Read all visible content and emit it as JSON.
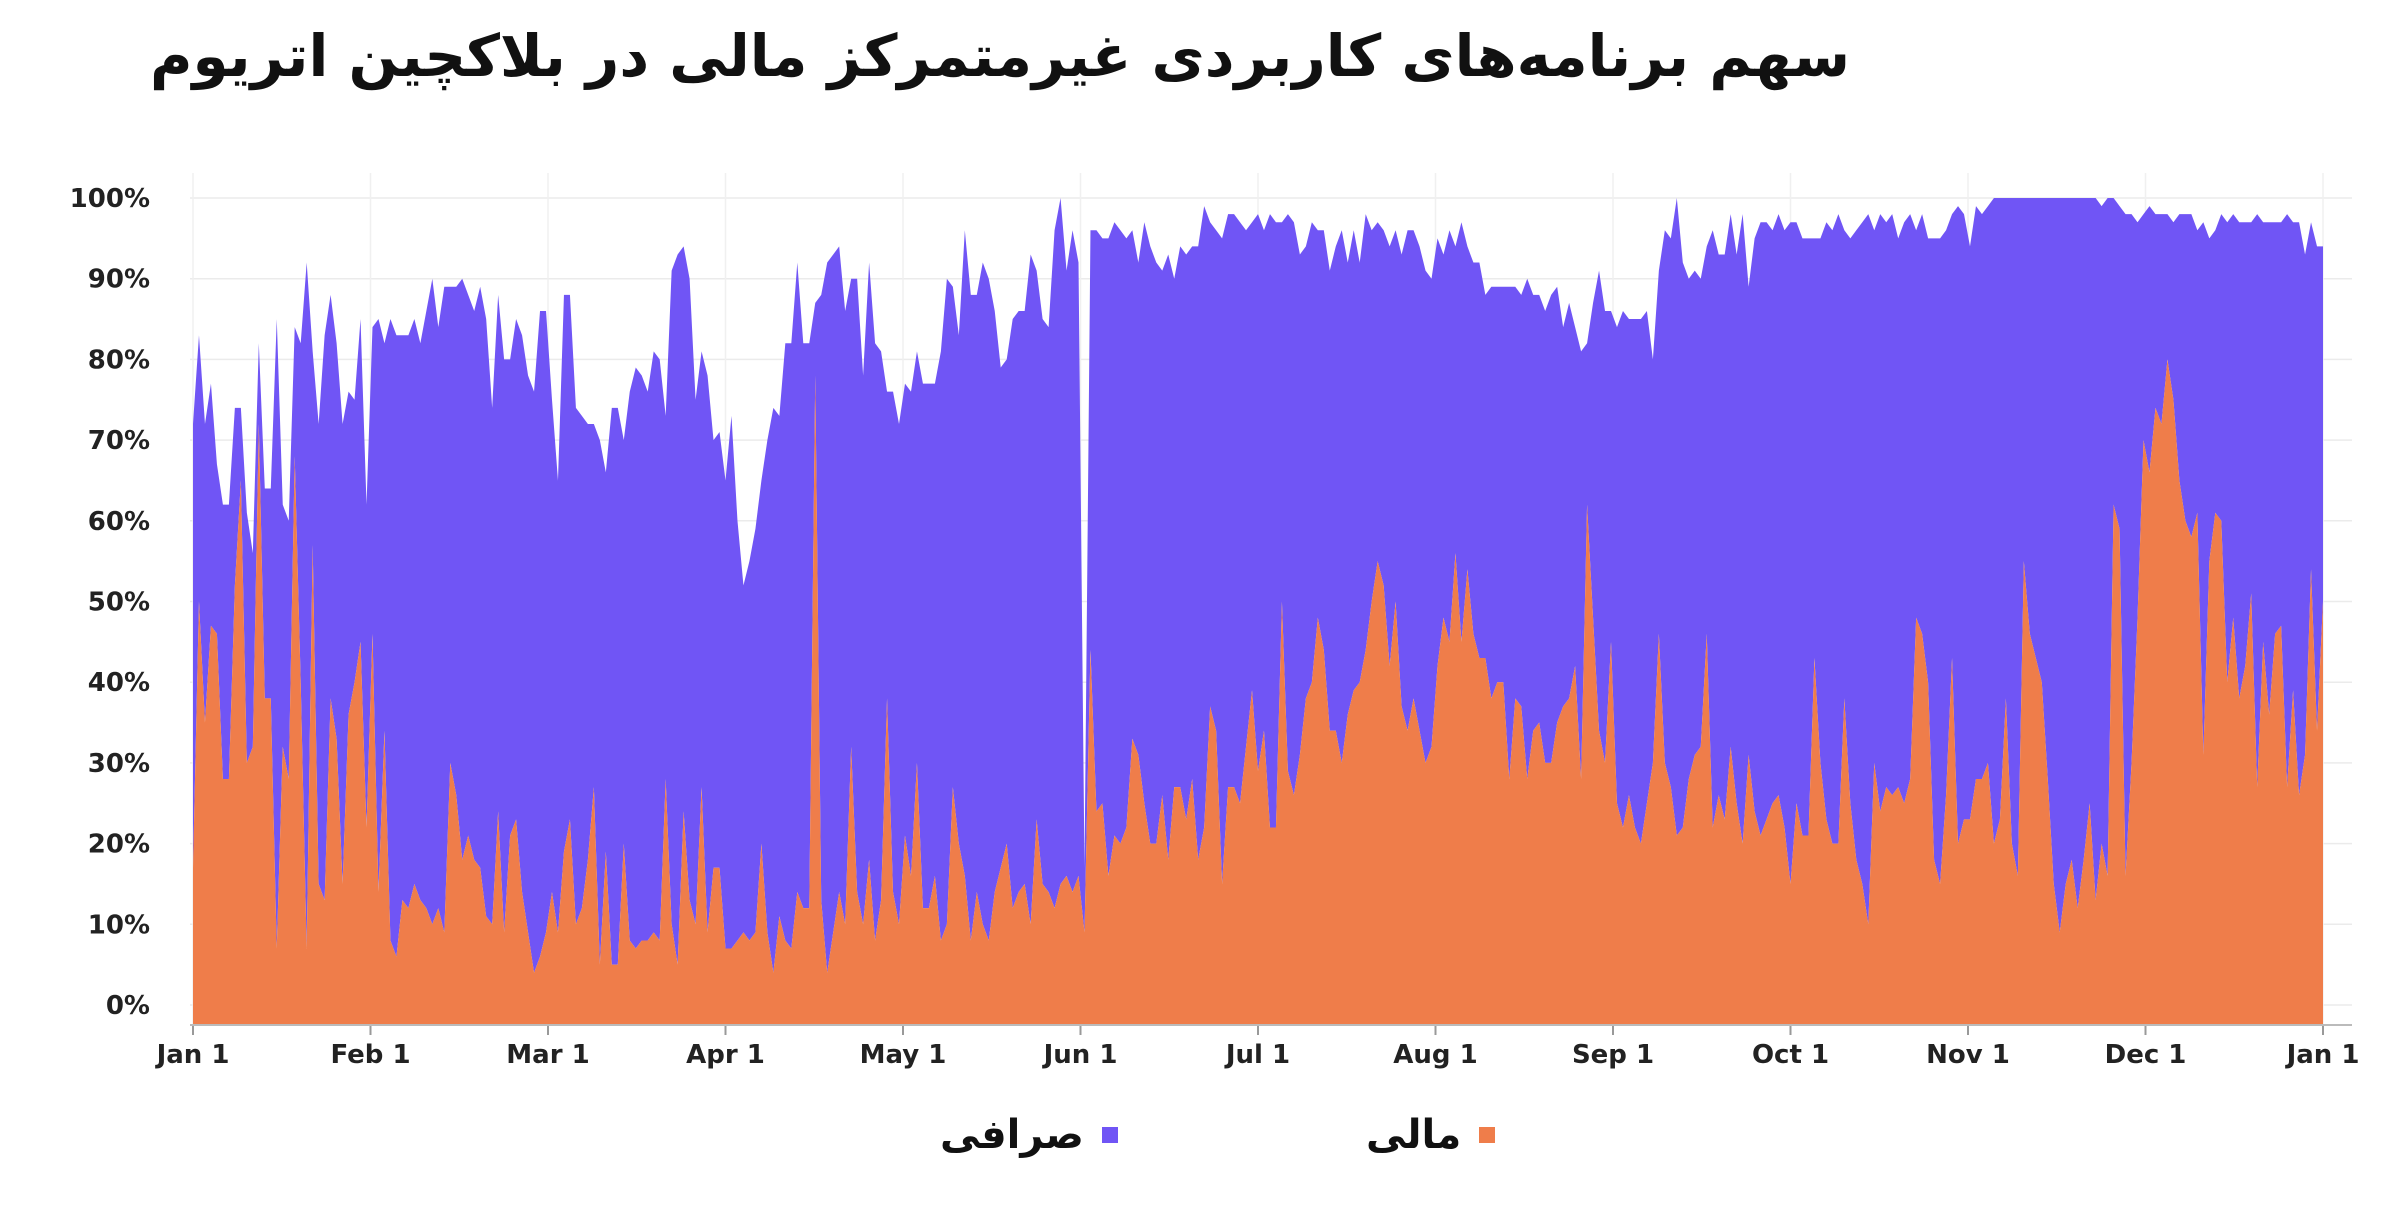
{
  "chart_data": {
    "type": "area",
    "stacked": true,
    "title": "سهم برنامه‌های کاربردی غیرمتمرکز مالی در بلاکچین اتریوم",
    "xlabel": "",
    "ylabel": "",
    "ylim": [
      0,
      100
    ],
    "grid": true,
    "legend_position": "bottom",
    "x_tick_labels": [
      "Jan 1",
      "Feb 1",
      "Mar 1",
      "Apr 1",
      "May 1",
      "Jun 1",
      "Jul 1",
      "Aug 1",
      "Sep 1",
      "Oct 1",
      "Nov 1",
      "Dec 1",
      "Jan 1"
    ],
    "y_tick_labels": [
      "0%",
      "10%",
      "20%",
      "30%",
      "40%",
      "50%",
      "60%",
      "70%",
      "80%",
      "90%",
      "100%"
    ],
    "series": [
      {
        "name": "مالی",
        "color": "#EF7D4A",
        "values": [
          17,
          50,
          35,
          47,
          46,
          28,
          28,
          52,
          65,
          30,
          32,
          72,
          38,
          38,
          7,
          32,
          28,
          68,
          40,
          7,
          57,
          15,
          13,
          38,
          33,
          15,
          36,
          40,
          45,
          22,
          46,
          14,
          34,
          8,
          6,
          13,
          12,
          15,
          13,
          12,
          10,
          12,
          9,
          30,
          26,
          18,
          21,
          18,
          17,
          11,
          10,
          24,
          9,
          21,
          23,
          14,
          9,
          4,
          6,
          9,
          14,
          9,
          19,
          23,
          10,
          12,
          18,
          27,
          5,
          19,
          5,
          5,
          20,
          8,
          7,
          8,
          8,
          9,
          8,
          28,
          10,
          5,
          24,
          13,
          10,
          27,
          9,
          17,
          17,
          7,
          7,
          8,
          9,
          8,
          9,
          20,
          9,
          4,
          11,
          8,
          7,
          14,
          12,
          12,
          78,
          13,
          4,
          9,
          14,
          10,
          32,
          14,
          10,
          18,
          8,
          13,
          38,
          14,
          10,
          21,
          16,
          30,
          12,
          12,
          16,
          8,
          10,
          27,
          20,
          16,
          8,
          14,
          10,
          8,
          14,
          17,
          20,
          12,
          14,
          15,
          10,
          23,
          15,
          14,
          12,
          15,
          16,
          14,
          16,
          9,
          44,
          24,
          25,
          16,
          21,
          20,
          22,
          33,
          31,
          25,
          20,
          20,
          26,
          18,
          27,
          27,
          23,
          28,
          18,
          22,
          37,
          34,
          15,
          27,
          27,
          25,
          32,
          39,
          29,
          34,
          22,
          22,
          50,
          29,
          26,
          31,
          38,
          40,
          48,
          44,
          34,
          34,
          30,
          36,
          39,
          40,
          44,
          50,
          55,
          52,
          42,
          50,
          37,
          34,
          38,
          34,
          30,
          32,
          42,
          48,
          45,
          56,
          45,
          54,
          46,
          43,
          43,
          38,
          40,
          40,
          28,
          38,
          37,
          28,
          34,
          35,
          30,
          30,
          35,
          37,
          38,
          42,
          28,
          62,
          48,
          34,
          30,
          45,
          25,
          22,
          26,
          22,
          20,
          25,
          30,
          46,
          30,
          27,
          21,
          22,
          28,
          31,
          32,
          46,
          22,
          26,
          23,
          32,
          25,
          20,
          31,
          24,
          21,
          23,
          25,
          26,
          22,
          15,
          25,
          21,
          21,
          43,
          30,
          23,
          20,
          20,
          38,
          25,
          18,
          15,
          10,
          30,
          24,
          27,
          26,
          27,
          25,
          28,
          48,
          46,
          40,
          18,
          15,
          26,
          43,
          20,
          23,
          23,
          28,
          28,
          30,
          20,
          23,
          38,
          20,
          16,
          55,
          46,
          43,
          40,
          28,
          15,
          9,
          15,
          18,
          12,
          18,
          25,
          13,
          20,
          16,
          62,
          59,
          16,
          30,
          48,
          70,
          66,
          74,
          72,
          80,
          75,
          65,
          60,
          58,
          61,
          31,
          55,
          61,
          60,
          40,
          48,
          38,
          42,
          51,
          27,
          45,
          36,
          46,
          47,
          27,
          39,
          26,
          31,
          54,
          34,
          50
        ]
      },
      {
        "name": "صرافی",
        "color": "#7055F5",
        "values": [
          55,
          33,
          37,
          30,
          21,
          34,
          34,
          22,
          9,
          31,
          24,
          10,
          26,
          26,
          78,
          30,
          32,
          16,
          42,
          85,
          24,
          57,
          70,
          50,
          49,
          57,
          40,
          35,
          40,
          40,
          38,
          71,
          48,
          77,
          77,
          70,
          71,
          70,
          69,
          74,
          80,
          72,
          80,
          59,
          63,
          72,
          67,
          68,
          72,
          74,
          64,
          64,
          71,
          59,
          62,
          69,
          69,
          72,
          80,
          77,
          61,
          56,
          69,
          65,
          64,
          61,
          54,
          45,
          65,
          47,
          69,
          69,
          50,
          68,
          72,
          70,
          68,
          72,
          72,
          45,
          81,
          88,
          70,
          77,
          65,
          54,
          69,
          53,
          54,
          58,
          66,
          52,
          43,
          47,
          50,
          45,
          61,
          70,
          62,
          74,
          75,
          78,
          70,
          70,
          9,
          75,
          88,
          84,
          80,
          76,
          58,
          76,
          68,
          74,
          74,
          68,
          38,
          62,
          62,
          56,
          60,
          51,
          65,
          65,
          61,
          73,
          80,
          62,
          63,
          80,
          80,
          74,
          82,
          82,
          72,
          62,
          60,
          73,
          72,
          71,
          83,
          68,
          70,
          70,
          84,
          85,
          75,
          82,
          76,
          8,
          52,
          72,
          70,
          79,
          76,
          76,
          73,
          63,
          61,
          72,
          74,
          72,
          65,
          75,
          63,
          67,
          70,
          66,
          76,
          77,
          60,
          62,
          80,
          71,
          71,
          72,
          64,
          58,
          69,
          62,
          76,
          75,
          47,
          69,
          71,
          62,
          56,
          57,
          48,
          52,
          57,
          60,
          66,
          56,
          57,
          52,
          54,
          46,
          42,
          44,
          52,
          46,
          56,
          62,
          58,
          60,
          61,
          58,
          53,
          45,
          51,
          38,
          52,
          40,
          46,
          49,
          45,
          51,
          49,
          49,
          61,
          51,
          51,
          62,
          54,
          53,
          56,
          58,
          54,
          47,
          49,
          42,
          53,
          20,
          39,
          57,
          56,
          41,
          59,
          64,
          59,
          63,
          65,
          61,
          50,
          45,
          66,
          68,
          79,
          70,
          62,
          60,
          58,
          48,
          74,
          67,
          70,
          66,
          68,
          78,
          58,
          71,
          76,
          74,
          71,
          72,
          74,
          82,
          72,
          74,
          74,
          52,
          65,
          74,
          76,
          78,
          58,
          70,
          78,
          82,
          88,
          66,
          74,
          70,
          72,
          68,
          72,
          70,
          48,
          52,
          55,
          77,
          80,
          70,
          55,
          79,
          75,
          71,
          71,
          70,
          69,
          80,
          78,
          62,
          80,
          84,
          46,
          54,
          57,
          60,
          72,
          85,
          91,
          85,
          82,
          88,
          82,
          75,
          87,
          79,
          84,
          38,
          40,
          82,
          68,
          49,
          28,
          33,
          24,
          26,
          18,
          22,
          33,
          38,
          40,
          35,
          66,
          40,
          35,
          38,
          57,
          50,
          59,
          55,
          46,
          71,
          52,
          61,
          51,
          50,
          71,
          58,
          71,
          62,
          43,
          60,
          44
        ]
      }
    ]
  },
  "legend": {
    "items": [
      {
        "label": "صرافی",
        "color": "#7055F5"
      },
      {
        "label": "مالی",
        "color": "#EF7D4A"
      }
    ]
  }
}
